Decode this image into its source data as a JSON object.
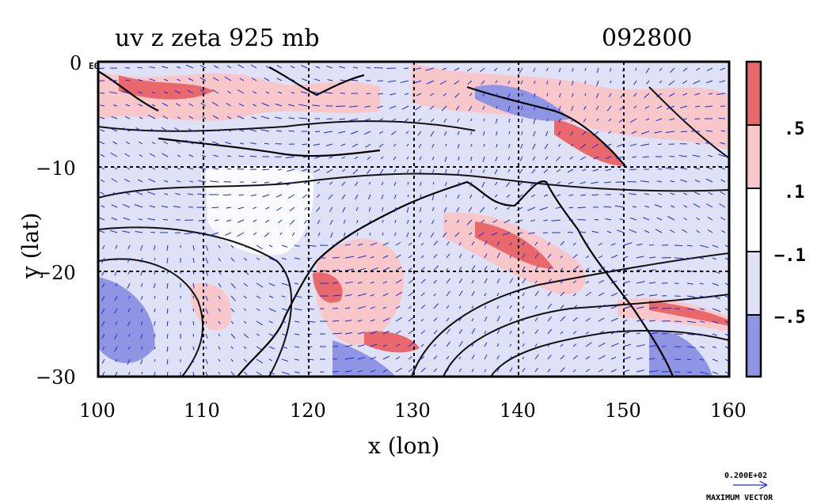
{
  "title": {
    "left": "uv z zeta 925 mb",
    "right": "092800"
  },
  "map": {
    "xlabel": "x (lon)",
    "ylabel": "y (lat)",
    "x_ticks": [
      "100",
      "110",
      "120",
      "130",
      "140",
      "150",
      "160"
    ],
    "y_ticks": [
      "0",
      "−10",
      "−20",
      "−30"
    ],
    "x_range": [
      100,
      160
    ],
    "y_range": [
      -30,
      0
    ],
    "grid": true,
    "grid_style": "dashed",
    "top_left_tick_label": "0 E0",
    "colors": {
      "pos_strong": "#e9686c",
      "pos_weak": "#f7c7c9",
      "neg_weak": "#dfe2f6",
      "neg_strong": "#8f95e3",
      "vector": "#1f2ad6",
      "contour_pos": "#e0212a",
      "contour_neg": "#1f2ad6",
      "height_contour": "#111111",
      "land_outline": "#000000"
    },
    "fields": [
      "wind vectors (uv)",
      "geopotential height contours (z)",
      "relative vorticity shading (zeta)"
    ],
    "level": "925 mb"
  },
  "colorbar": {
    "labels": [
      ".5",
      ".1",
      "−.1",
      "−.5"
    ],
    "colors_top_to_bottom": [
      "#e9686c",
      "#f7c7c9",
      "#ffffff",
      "#dfe2f6",
      "#8f95e3"
    ]
  },
  "vector_key": {
    "value": "0.200E+02",
    "label": "MAXIMUM VECTOR"
  }
}
